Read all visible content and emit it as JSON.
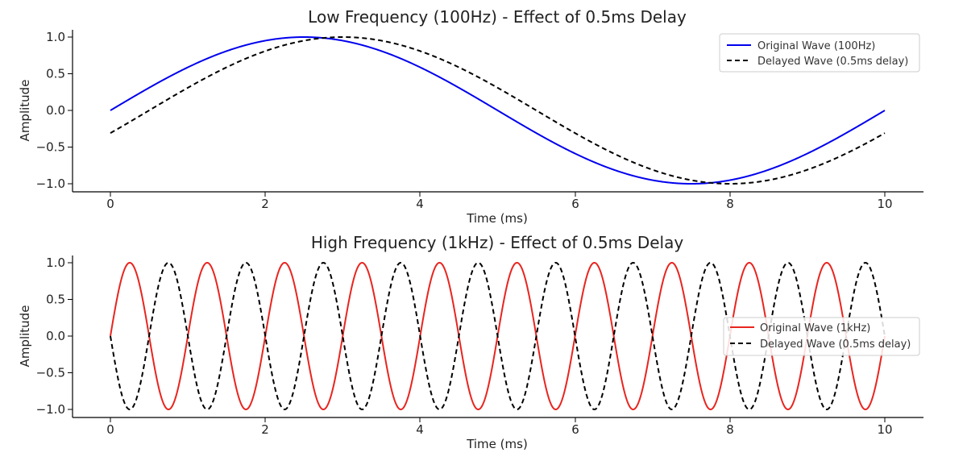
{
  "chart_data": [
    {
      "type": "line",
      "title": "Low Frequency (100Hz) - Effect of 0.5ms Delay",
      "xlabel": "Time (ms)",
      "ylabel": "Amplitude",
      "xlim": [
        0,
        10
      ],
      "ylim": [
        -1.0,
        1.0
      ],
      "xticks": [
        0,
        2,
        4,
        6,
        8,
        10
      ],
      "xtick_labels": [
        "0",
        "2",
        "4",
        "6",
        "8",
        "10"
      ],
      "yticks": [
        1.0,
        0.5,
        0.0,
        -0.5,
        -1.0
      ],
      "ytick_labels": [
        "1.0",
        "0.5",
        "0.0",
        "−0.5",
        "−1.0"
      ],
      "legend_position": "top-right",
      "series": [
        {
          "name": "Original Wave (100Hz)",
          "color": "#0000ee",
          "style": "solid",
          "function": "sine",
          "frequency_hz": 100,
          "delay_ms": 0
        },
        {
          "name": "Delayed Wave (0.5ms delay)",
          "color": "#000000",
          "style": "dashed",
          "function": "sine",
          "frequency_hz": 100,
          "delay_ms": 0.5
        }
      ]
    },
    {
      "type": "line",
      "title": "High Frequency (1kHz) - Effect of 0.5ms Delay",
      "xlabel": "Time (ms)",
      "ylabel": "Amplitude",
      "xlim": [
        0,
        10
      ],
      "ylim": [
        -1.0,
        1.0
      ],
      "xticks": [
        0,
        2,
        4,
        6,
        8,
        10
      ],
      "xtick_labels": [
        "0",
        "2",
        "4",
        "6",
        "8",
        "10"
      ],
      "yticks": [
        1.0,
        0.5,
        0.0,
        -0.5,
        -1.0
      ],
      "ytick_labels": [
        "1.0",
        "0.5",
        "0.0",
        "−0.5",
        "−1.0"
      ],
      "legend_position": "center-right",
      "series": [
        {
          "name": "Original Wave (1kHz)",
          "color": "#e8251f",
          "style": "solid",
          "function": "sine",
          "frequency_hz": 1000,
          "delay_ms": 0
        },
        {
          "name": "Delayed Wave (0.5ms delay)",
          "color": "#000000",
          "style": "dashed",
          "function": "sine",
          "frequency_hz": 1000,
          "delay_ms": 0.5
        }
      ]
    }
  ]
}
